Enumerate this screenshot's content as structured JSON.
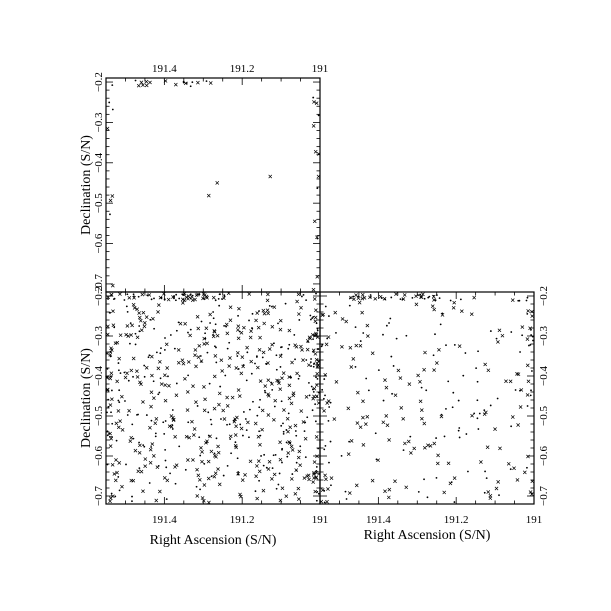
{
  "chart_data": [
    {
      "type": "scatter",
      "panel": "top-left",
      "xlim": [
        191.55,
        191.0
      ],
      "ylim": [
        -0.72,
        -0.19
      ],
      "xticks_top": [
        "191.4",
        "191.2",
        "191"
      ],
      "yticks_left": [
        "−0.2",
        "−0.3",
        "−0.4",
        "−0.5",
        "−0.6",
        "−0.7"
      ],
      "ylabel": "Declination (S/N)",
      "density": "sparse"
    },
    {
      "type": "scatter",
      "panel": "bottom-left",
      "xlim": [
        191.55,
        191.0
      ],
      "ylim": [
        -0.72,
        -0.19
      ],
      "xticks_bottom": [
        "191.4",
        "191.2",
        "191"
      ],
      "yticks_left": [
        "−0.2",
        "−0.3",
        "−0.4",
        "−0.5",
        "−0.6",
        "−0.7"
      ],
      "xlabel": "Right Ascension (S/N)",
      "ylabel": "Declination (S/N)",
      "density": "dense"
    },
    {
      "type": "scatter",
      "panel": "bottom-right",
      "xlim": [
        191.55,
        191.0
      ],
      "ylim": [
        -0.72,
        -0.19
      ],
      "xticks_bottom": [
        "191.4",
        "191.2",
        "191"
      ],
      "yticks_right": [
        "−0.2",
        "−0.3",
        "−0.4",
        "−0.5",
        "−0.6",
        "−0.7"
      ],
      "xlabel": "Right Ascension (S/N)",
      "density": "medium"
    }
  ]
}
